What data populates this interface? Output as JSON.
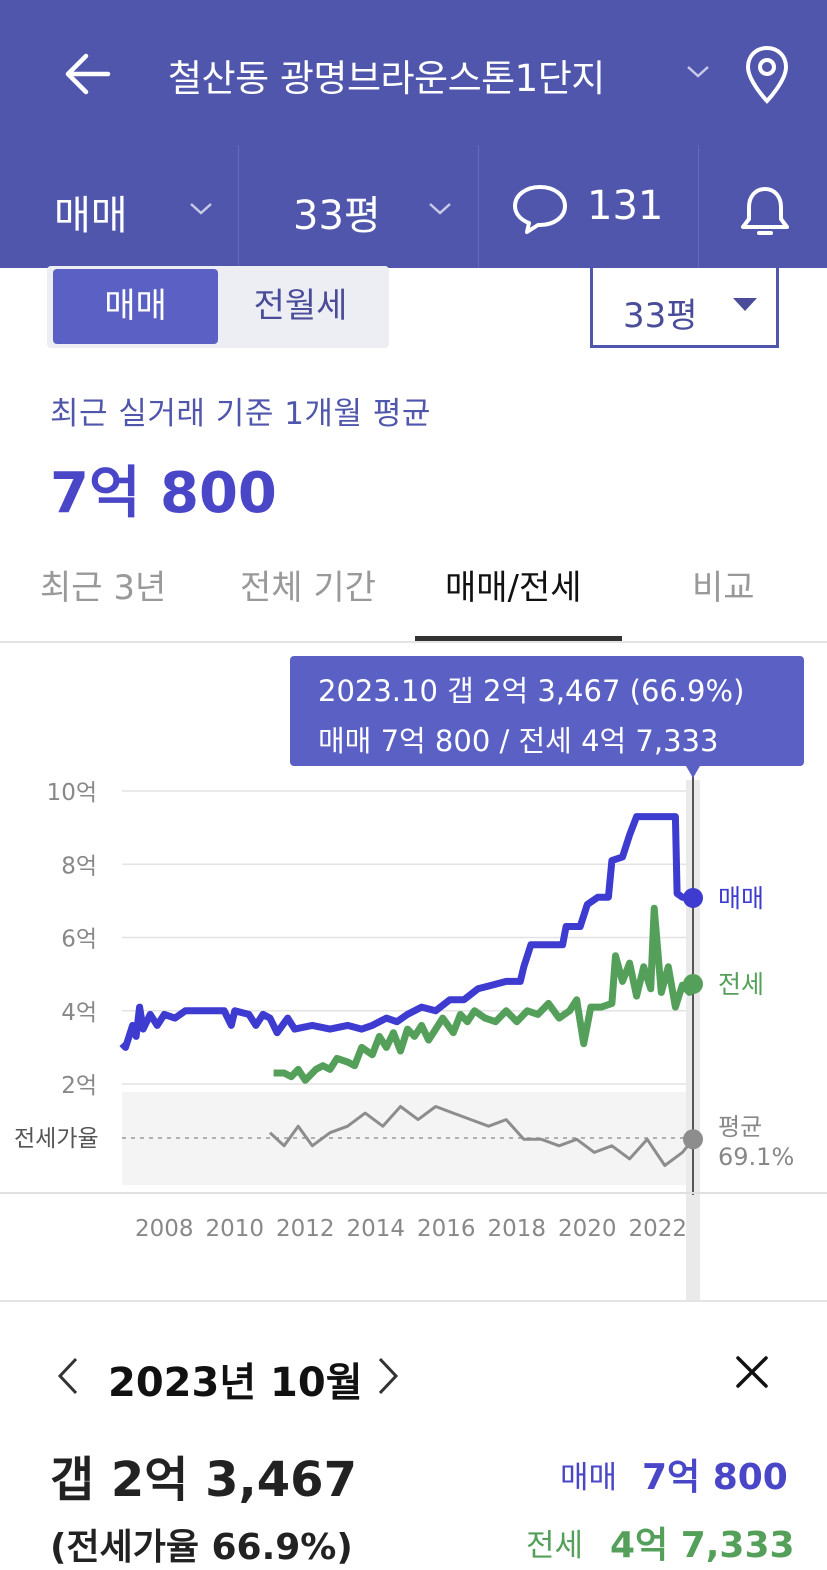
{
  "header": {
    "title": "철산동 광명브라운스톤1단지",
    "trade_type": "매매",
    "size": "33평",
    "comment_count": "131"
  },
  "segment": {
    "active": "매매",
    "inactive": "전월세"
  },
  "size_select": "33평",
  "summary": {
    "subtitle": "최근 실거래 기준 1개월 평균",
    "price": "7억 800"
  },
  "tabs": [
    "최근 3년",
    "전체 기간",
    "매매/전세",
    "비교"
  ],
  "active_tab": 2,
  "tooltip": {
    "line1": "2023.10  갭 2억 3,467 (66.9%)",
    "line2": "매매 7억 800 / 전세 4억 7,333"
  },
  "chart_data": {
    "type": "line",
    "x_ticks": [
      "2008",
      "2010",
      "2012",
      "2014",
      "2016",
      "2018",
      "2020",
      "2022"
    ],
    "y_ticks": [
      "10억",
      "8억",
      "6억",
      "4억",
      "2억"
    ],
    "y_range": [
      2,
      10
    ],
    "ratio_label": "전세가율",
    "series": [
      {
        "name": "매매",
        "color": "#3d3bd0",
        "points": [
          [
            2006.9,
            3.1
          ],
          [
            2007.0,
            3.0
          ],
          [
            2007.2,
            3.6
          ],
          [
            2007.3,
            3.3
          ],
          [
            2007.4,
            4.1
          ],
          [
            2007.5,
            3.5
          ],
          [
            2007.7,
            3.9
          ],
          [
            2007.9,
            3.6
          ],
          [
            2008.1,
            3.9
          ],
          [
            2008.4,
            3.8
          ],
          [
            2008.7,
            4.0
          ],
          [
            2009.0,
            4.0
          ],
          [
            2009.4,
            4.0
          ],
          [
            2009.8,
            4.0
          ],
          [
            2010.0,
            3.6
          ],
          [
            2010.1,
            4.0
          ],
          [
            2010.5,
            3.9
          ],
          [
            2010.7,
            3.6
          ],
          [
            2010.9,
            3.9
          ],
          [
            2011.1,
            3.8
          ],
          [
            2011.3,
            3.4
          ],
          [
            2011.6,
            3.8
          ],
          [
            2011.8,
            3.5
          ],
          [
            2012.3,
            3.6
          ],
          [
            2012.8,
            3.5
          ],
          [
            2013.3,
            3.6
          ],
          [
            2013.7,
            3.5
          ],
          [
            2014.0,
            3.6
          ],
          [
            2014.4,
            3.8
          ],
          [
            2014.7,
            3.7
          ],
          [
            2015.0,
            3.9
          ],
          [
            2015.4,
            4.1
          ],
          [
            2015.8,
            4.0
          ],
          [
            2016.2,
            4.3
          ],
          [
            2016.6,
            4.3
          ],
          [
            2017.0,
            4.6
          ],
          [
            2017.4,
            4.7
          ],
          [
            2017.8,
            4.8
          ],
          [
            2018.2,
            4.8
          ],
          [
            2018.3,
            5.2
          ],
          [
            2018.5,
            5.8
          ],
          [
            2019.0,
            5.8
          ],
          [
            2019.4,
            5.8
          ],
          [
            2019.5,
            6.3
          ],
          [
            2019.9,
            6.3
          ],
          [
            2020.1,
            6.9
          ],
          [
            2020.4,
            7.1
          ],
          [
            2020.7,
            7.1
          ],
          [
            2020.8,
            8.1
          ],
          [
            2021.1,
            8.2
          ],
          [
            2021.3,
            8.8
          ],
          [
            2021.5,
            9.3
          ],
          [
            2022.1,
            9.3
          ],
          [
            2022.6,
            9.3
          ],
          [
            2022.65,
            7.2
          ],
          [
            2022.8,
            7.1
          ],
          [
            2023.1,
            7.08
          ]
        ]
      },
      {
        "name": "전세",
        "color": "#54a05a",
        "points": [
          [
            2011.2,
            2.3
          ],
          [
            2011.5,
            2.3
          ],
          [
            2011.7,
            2.2
          ],
          [
            2011.9,
            2.4
          ],
          [
            2012.1,
            2.1
          ],
          [
            2012.4,
            2.4
          ],
          [
            2012.6,
            2.5
          ],
          [
            2012.8,
            2.4
          ],
          [
            2013.0,
            2.7
          ],
          [
            2013.3,
            2.6
          ],
          [
            2013.5,
            2.5
          ],
          [
            2013.7,
            3.0
          ],
          [
            2014.0,
            2.8
          ],
          [
            2014.2,
            3.3
          ],
          [
            2014.4,
            3.0
          ],
          [
            2014.6,
            3.4
          ],
          [
            2014.8,
            2.9
          ],
          [
            2015.0,
            3.5
          ],
          [
            2015.2,
            3.3
          ],
          [
            2015.4,
            3.6
          ],
          [
            2015.6,
            3.2
          ],
          [
            2015.8,
            3.5
          ],
          [
            2016.0,
            3.8
          ],
          [
            2016.3,
            3.4
          ],
          [
            2016.5,
            3.9
          ],
          [
            2016.7,
            3.7
          ],
          [
            2016.9,
            4.0
          ],
          [
            2017.2,
            3.8
          ],
          [
            2017.5,
            3.7
          ],
          [
            2017.8,
            4.0
          ],
          [
            2018.1,
            3.7
          ],
          [
            2018.4,
            4.0
          ],
          [
            2018.7,
            3.9
          ],
          [
            2019.0,
            4.2
          ],
          [
            2019.3,
            3.8
          ],
          [
            2019.6,
            4.0
          ],
          [
            2019.8,
            4.3
          ],
          [
            2020.0,
            3.1
          ],
          [
            2020.2,
            4.1
          ],
          [
            2020.5,
            4.1
          ],
          [
            2020.8,
            4.2
          ],
          [
            2020.9,
            5.5
          ],
          [
            2021.1,
            4.8
          ],
          [
            2021.3,
            5.3
          ],
          [
            2021.5,
            4.4
          ],
          [
            2021.7,
            5.2
          ],
          [
            2021.9,
            4.6
          ],
          [
            2022.0,
            6.8
          ],
          [
            2022.2,
            4.5
          ],
          [
            2022.4,
            5.2
          ],
          [
            2022.6,
            4.1
          ],
          [
            2022.8,
            4.7
          ],
          [
            2023.0,
            4.5
          ],
          [
            2023.1,
            4.73
          ]
        ]
      },
      {
        "name": "평균",
        "color": "#8d8d8d",
        "note": "전세가율 band",
        "points": [
          [
            2011.1,
            1.2
          ],
          [
            2011.5,
            1.0
          ],
          [
            2011.9,
            1.3
          ],
          [
            2012.3,
            1.0
          ],
          [
            2012.8,
            1.2
          ],
          [
            2013.3,
            1.3
          ],
          [
            2013.8,
            1.5
          ],
          [
            2014.3,
            1.3
          ],
          [
            2014.8,
            1.6
          ],
          [
            2015.3,
            1.4
          ],
          [
            2015.8,
            1.6
          ],
          [
            2016.3,
            1.5
          ],
          [
            2016.8,
            1.4
          ],
          [
            2017.3,
            1.3
          ],
          [
            2017.8,
            1.4
          ],
          [
            2018.3,
            1.1
          ],
          [
            2018.8,
            1.1
          ],
          [
            2019.3,
            1.0
          ],
          [
            2019.8,
            1.1
          ],
          [
            2020.3,
            0.9
          ],
          [
            2020.8,
            1.0
          ],
          [
            2021.3,
            0.8
          ],
          [
            2021.8,
            1.1
          ],
          [
            2022.3,
            0.7
          ],
          [
            2022.8,
            0.9
          ],
          [
            2023.1,
            1.1
          ]
        ]
      }
    ],
    "legend": {
      "sale": "매매",
      "jeonse": "전세",
      "avg": "평균",
      "avg_value": "69.1%"
    }
  },
  "detail": {
    "month": "2023년 10월",
    "gap": "갭 2억 3,467",
    "ratio": "(전세가율 66.9%)",
    "sale_label": "매매",
    "sale_value": "7억 800",
    "jeonse_label": "전세",
    "jeonse_value": "4억 7,333"
  },
  "colors": {
    "header": "#5056ac",
    "sale": "#3d3bd0",
    "jeonse": "#54a05a",
    "avg": "#8d8d8d"
  }
}
